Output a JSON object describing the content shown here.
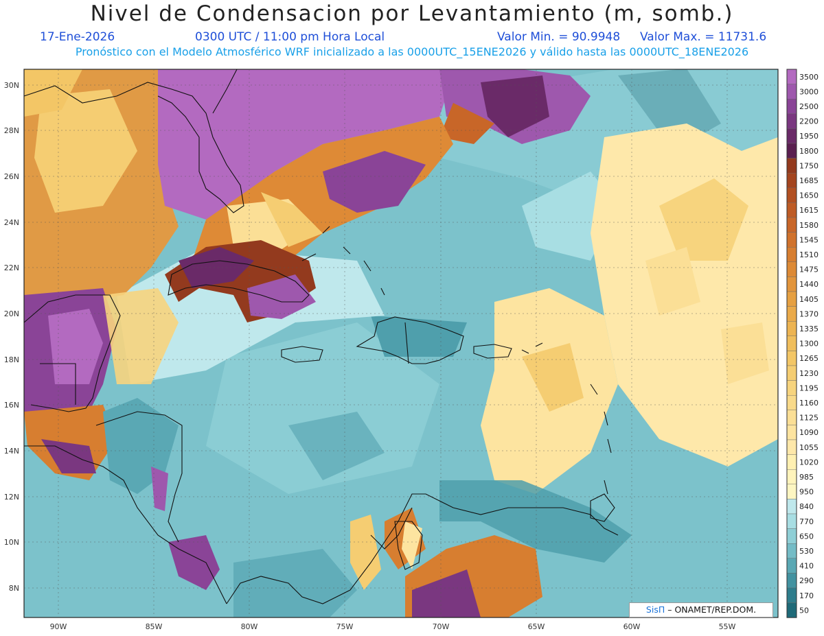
{
  "header": {
    "title": "Nivel de Condensacion por Levantamiento (m, somb.)",
    "date": "17-Ene-2026",
    "time": "0300 UTC / 11:00 pm Hora Local",
    "min_value": "Valor Min. = 90.9948",
    "max_value": "Valor Max. = 11731.6",
    "model_info": "Pronóstico con el Modelo Atmosférico WRF inicializado a las 0000UTC_15ENE2026 y válido hasta las  0000UTC_18ENE2026"
  },
  "map": {
    "lat_labels": [
      "30N",
      "28N",
      "26N",
      "24N",
      "22N",
      "20N",
      "18N",
      "16N",
      "14N",
      "12N",
      "10N",
      "8N"
    ],
    "lon_labels": [
      "90W",
      "85W",
      "80W",
      "75W",
      "70W",
      "65W",
      "60W",
      "55W"
    ]
  },
  "legend": {
    "levels": [
      "3500",
      "3000",
      "2500",
      "2200",
      "1950",
      "1800",
      "1750",
      "1685",
      "1650",
      "1615",
      "1580",
      "1545",
      "1510",
      "1475",
      "1440",
      "1405",
      "1370",
      "1335",
      "1300",
      "1265",
      "1230",
      "1195",
      "1160",
      "1125",
      "1090",
      "1055",
      "1020",
      "985",
      "950",
      "840",
      "770",
      "650",
      "530",
      "410",
      "290",
      "170",
      "50"
    ],
    "colors": [
      "#b36ac0",
      "#9e58ad",
      "#8a4497",
      "#7a3780",
      "#6a2a68",
      "#5a1f50",
      "#933a1e",
      "#a4451f",
      "#b25022",
      "#be5b25",
      "#c86628",
      "#d0722c",
      "#d77e30",
      "#dd8a36",
      "#e2953c",
      "#e6a042",
      "#eaaa4a",
      "#edb452",
      "#f0be5c",
      "#f3c666",
      "#f5cd72",
      "#f7d47e",
      "#f9da8a",
      "#fbdf96",
      "#fde4a0",
      "#fee8aa",
      "#fff0b2",
      "#fff4bc",
      "#fdf6c2",
      "#bfe8ec",
      "#a8dee3",
      "#8fcfd6",
      "#74bcc6",
      "#5aa8b4",
      "#4292a0",
      "#2e7d8c",
      "#1e6a78"
    ]
  },
  "credit": {
    "logo": "SisΠ",
    "text": "– ONAMET/REP.DOM."
  }
}
